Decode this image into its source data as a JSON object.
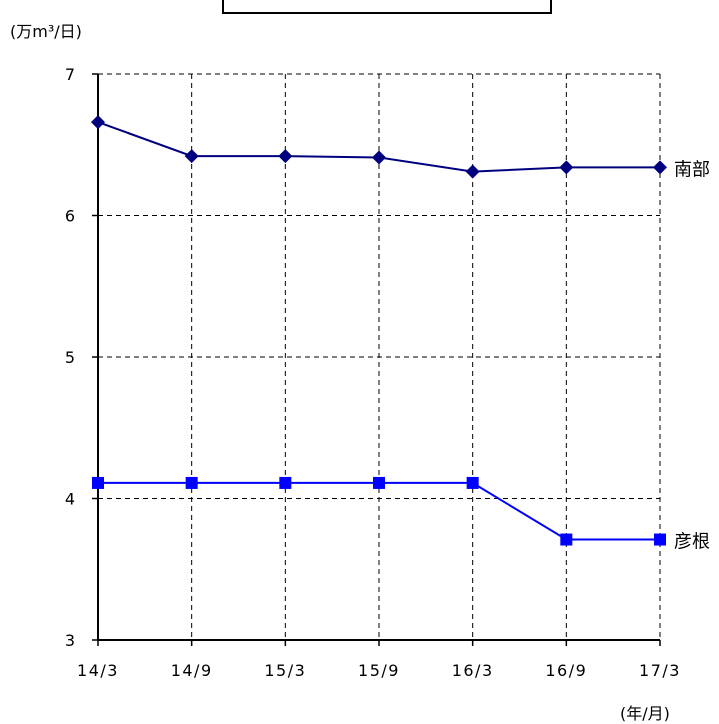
{
  "chart_data": {
    "type": "line",
    "title": "",
    "ylabel": "(万m³/日)",
    "xlabel": "(年/月)",
    "categories": [
      "14/3",
      "14/9",
      "15/3",
      "15/9",
      "16/3",
      "16/9",
      "17/3"
    ],
    "ylim": [
      3,
      7
    ],
    "yticks": [
      3,
      4,
      5,
      6,
      7
    ],
    "grid": true,
    "series": [
      {
        "name": "南部",
        "values": [
          6.66,
          6.42,
          6.42,
          6.41,
          6.31,
          6.34,
          6.34
        ],
        "color": "#00007f",
        "marker": "diamond"
      },
      {
        "name": "彦根",
        "values": [
          4.11,
          4.11,
          4.11,
          4.11,
          4.11,
          3.71,
          3.71
        ],
        "color": "#0000ff",
        "marker": "square"
      }
    ]
  }
}
